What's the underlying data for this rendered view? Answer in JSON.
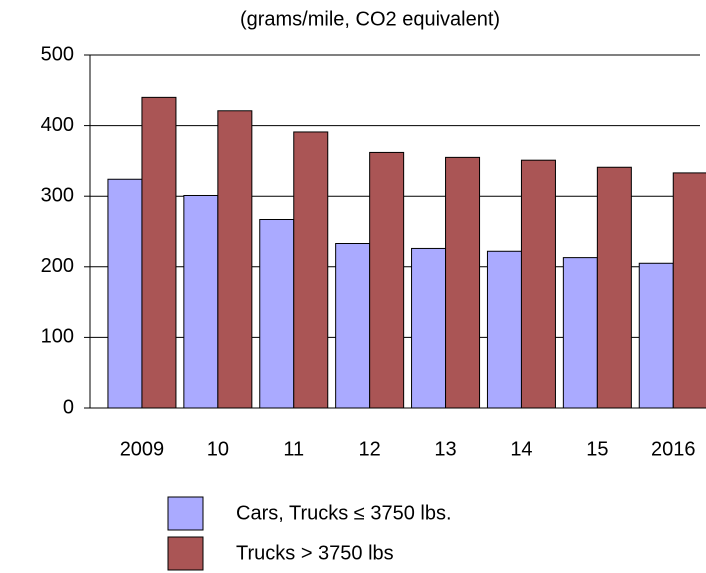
{
  "chart_data": {
    "type": "bar",
    "title": "(grams/mile, CO2 equivalent)",
    "categories": [
      "2009",
      "10",
      "11",
      "12",
      "13",
      "14",
      "15",
      "2016"
    ],
    "series": [
      {
        "name": "Cars, Trucks ≤ 3750 lbs.",
        "color": "#aaaaff",
        "values": [
          324,
          301,
          267,
          233,
          226,
          222,
          213,
          205
        ]
      },
      {
        "name": "Trucks > 3750 lbs",
        "color": "#aa5555",
        "values": [
          440,
          421,
          391,
          362,
          355,
          351,
          341,
          333
        ]
      }
    ],
    "ylim": [
      0,
      500
    ],
    "yticks": [
      0,
      100,
      200,
      300,
      400,
      500
    ],
    "grid": true,
    "legend": "bottom"
  }
}
